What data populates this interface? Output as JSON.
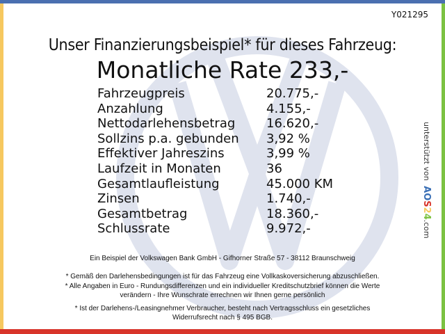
{
  "code": "Y021295",
  "title": "Unser Finanzierungsbeispiel* für dieses Fahrzeug:",
  "rate": "Monatliche Rate 233,-",
  "rows": [
    {
      "label": "Fahrzeugpreis",
      "value": "20.775,-"
    },
    {
      "label": "Anzahlung",
      "value": "4.155,-"
    },
    {
      "label": "Nettodarlehensbetrag",
      "value": "16.620,-"
    },
    {
      "label": "Sollzins p.a. gebunden",
      "value": "3,92 %"
    },
    {
      "label": "Effektiver Jahreszins",
      "value": "3,99 %"
    },
    {
      "label": "Laufzeit in Monaten",
      "value": "36"
    },
    {
      "label": "Gesamtlaufleistung",
      "value": "45.000 KM"
    },
    {
      "label": "Zinsen",
      "value": "1.740,-"
    },
    {
      "label": "Gesamtbetrag",
      "value": "18.360,-"
    },
    {
      "label": "Schlussrate",
      "value": "9.972,-"
    }
  ],
  "side": {
    "prefix": "unterstützt von",
    "brand": [
      "A",
      "O",
      "S",
      "2",
      "4"
    ],
    "brand_colors": [
      "#3a6fb5",
      "#3a6fb5",
      "#d8342a",
      "#f6c85f",
      "#7cc242"
    ],
    "suffix": ".com"
  },
  "footer": {
    "bank": "Ein Beispiel der Volkswagen Bank GmbH - Gifhorner Straße 57 - 38112 Braunschweig",
    "note1": "* Gemäß den Darlehensbedingungen ist für das Fahrzeug eine Vollkaskoversicherung abzuschließen.",
    "note2a": "* Alle Angaben in Euro - Rundungsdifferenzen und ein individueller Kreditschutzbrief können die Werte",
    "note2b": "verändern - Ihre Wunschrate errechnen wir Ihnen gerne persönlich",
    "note3a": "* Ist der Darlehens-/Leasingnehmer Verbraucher, besteht nach Vertragsschluss ein gesetzliches",
    "note3b": "Widerrufsrecht nach § 495 BGB."
  },
  "colors": {
    "top": "#4a6fb0",
    "left": "#f6c85f",
    "right": "#7cc242",
    "bottom": "#d8342a",
    "watermark": "#dfe3ee"
  }
}
